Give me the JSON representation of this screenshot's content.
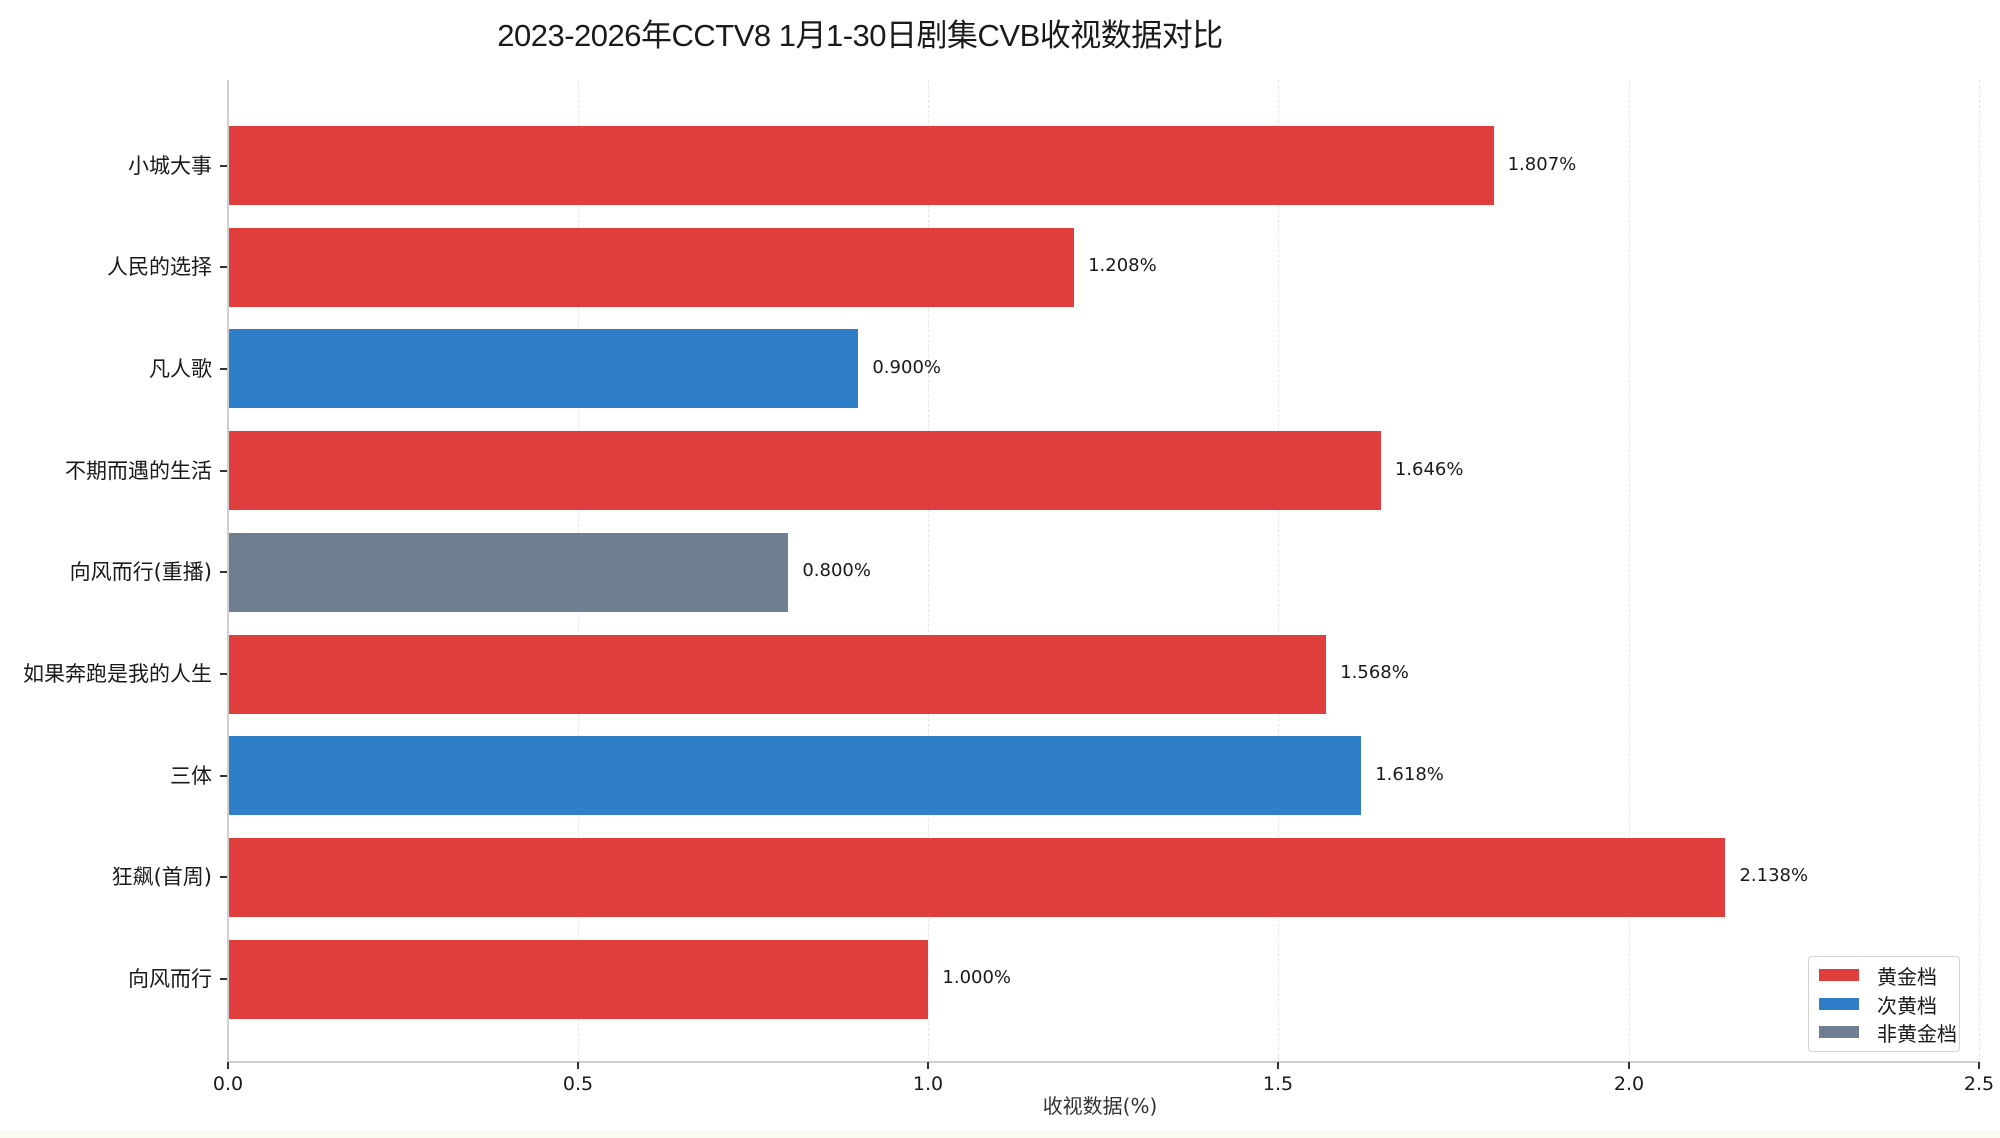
{
  "chart_data": {
    "type": "bar",
    "orientation": "horizontal",
    "title": "2023-2026年CCTV8 1月1-30日剧集CVB收视数据对比",
    "xlabel": "收视数据(%)",
    "ylabel": "",
    "xlim": [
      0,
      2.5
    ],
    "xticks": [
      "0.0",
      "0.5",
      "1.0",
      "1.5",
      "2.0",
      "2.5"
    ],
    "grid": "x-dashed",
    "legend_position": "lower right",
    "categories": [
      "小城大事",
      "人民的选择",
      "凡人歌",
      "不期而遇的生活",
      "向风而行(重播)",
      "如果奔跑是我的人生",
      "三体",
      "狂飙(首周)",
      "向风而行"
    ],
    "values": [
      1.807,
      1.208,
      0.9,
      1.646,
      0.8,
      1.568,
      1.618,
      2.138,
      1.0
    ],
    "value_labels": [
      "1.807%",
      "1.208%",
      "0.900%",
      "1.646%",
      "0.800%",
      "1.568%",
      "1.618%",
      "2.138%",
      "1.000%"
    ],
    "slot": [
      "黄金档",
      "黄金档",
      "次黄金档",
      "黄金档",
      "非黄金档",
      "黄金档",
      "次黄金档",
      "黄金档",
      "黄金档"
    ],
    "legend": [
      {
        "label": "黄金档",
        "color": "#e03d3d"
      },
      {
        "label": "次黄档",
        "color": "#2f7fc8"
      },
      {
        "label": "非黄金档",
        "color": "#6e7f92"
      }
    ]
  },
  "colors": {
    "gold": "#e03d3d",
    "sub_gold": "#2f7fc8",
    "non_gold": "#6e7f92"
  }
}
